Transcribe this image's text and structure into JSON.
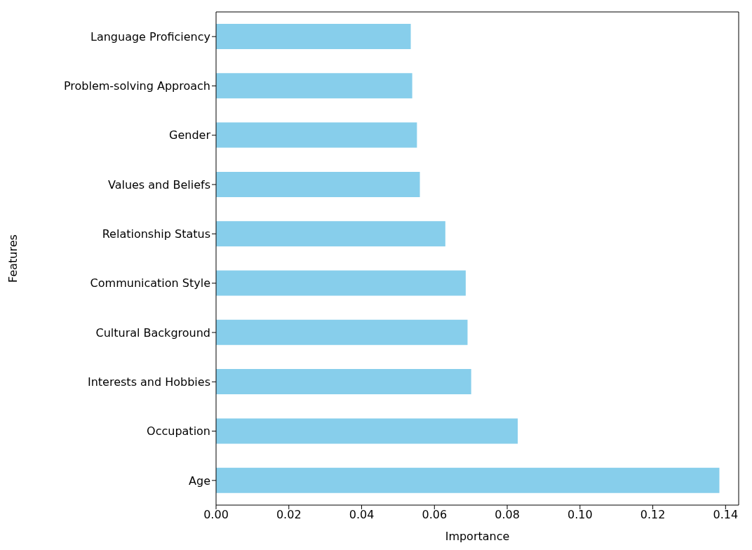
{
  "chart_data": {
    "type": "bar",
    "orientation": "horizontal",
    "xlabel": "Importance",
    "ylabel": "Features",
    "categories": [
      "Language Proficiency",
      "Problem-solving Approach",
      "Gender",
      "Values and Beliefs",
      "Relationship Status",
      "Communication Style",
      "Cultural Background",
      "Interests and Hobbies",
      "Occupation",
      "Age"
    ],
    "values": [
      0.0535,
      0.0539,
      0.0552,
      0.056,
      0.063,
      0.0686,
      0.0691,
      0.0701,
      0.0829,
      0.1383
    ],
    "color": "#87ceeb",
    "xlim": [
      0,
      0.1436
    ],
    "xticks": [
      {
        "value": 0,
        "label": "0.00"
      },
      {
        "value": 0.02,
        "label": "0.02"
      },
      {
        "value": 0.04,
        "label": "0.04"
      },
      {
        "value": 0.06,
        "label": "0.06"
      },
      {
        "value": 0.08,
        "label": "0.08"
      },
      {
        "value": 0.1,
        "label": "0.10"
      },
      {
        "value": 0.12,
        "label": "0.12"
      },
      {
        "value": 0.14,
        "label": "0.14"
      }
    ],
    "grid": false,
    "legend": false
  }
}
